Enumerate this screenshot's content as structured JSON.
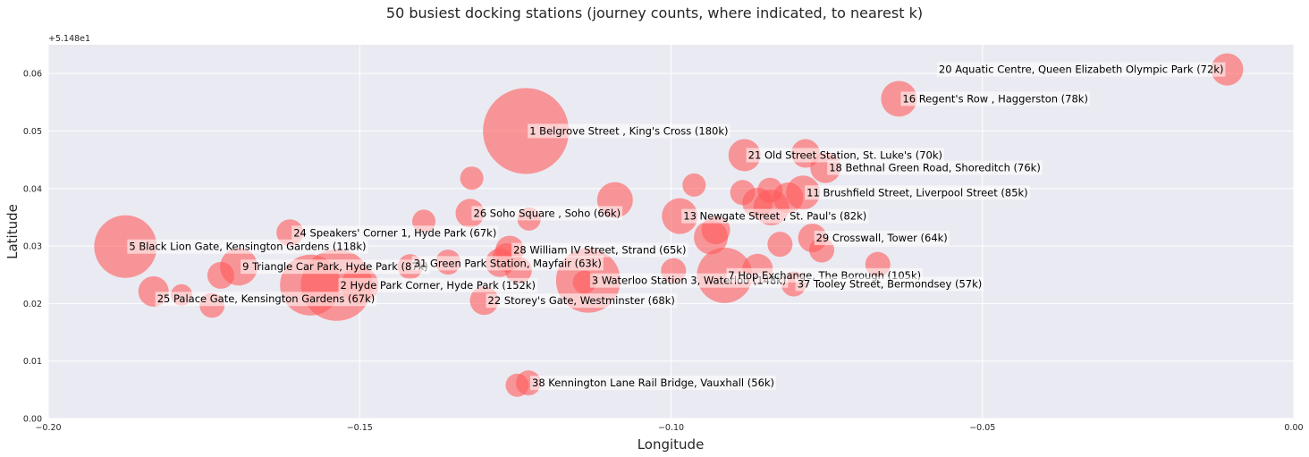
{
  "chart_data": {
    "type": "scatter",
    "title": "50 busiest docking stations (journey counts, where indicated, to nearest k)",
    "xlabel": "Longitude",
    "ylabel": "Latitude",
    "xlim": [
      -0.2,
      0.0
    ],
    "ylim": [
      0.0,
      0.065
    ],
    "y_offset_label": "+5.148e1",
    "x_ticks": [
      -0.2,
      -0.15,
      -0.1,
      -0.05,
      0.0
    ],
    "x_tick_labels": [
      "−0.20",
      "−0.15",
      "−0.10",
      "−0.05",
      "0.00"
    ],
    "y_ticks": [
      0.0,
      0.01,
      0.02,
      0.03,
      0.04,
      0.05,
      0.06
    ],
    "y_tick_labels": [
      "0.00",
      "0.01",
      "0.02",
      "0.03",
      "0.04",
      "0.05",
      "0.06"
    ],
    "grid": true,
    "colors": {
      "background": "#eaeaf2",
      "grid": "#ffffff",
      "marker": "#ff5a5a"
    },
    "points": [
      {
        "x": -0.1233,
        "y": 0.05,
        "r": 48
      },
      {
        "x": -0.1537,
        "y": 0.0232,
        "r": 40
      },
      {
        "x": -0.1579,
        "y": 0.0232,
        "r": 34
      },
      {
        "x": -0.1133,
        "y": 0.024,
        "r": 36
      },
      {
        "x": -0.1876,
        "y": 0.0299,
        "r": 35
      },
      {
        "x": -0.0914,
        "y": 0.0249,
        "r": 31
      },
      {
        "x": -0.1694,
        "y": 0.0264,
        "r": 21
      },
      {
        "x": -0.15,
        "y": 0.0232,
        "r": 21
      },
      {
        "x": -0.0936,
        "y": 0.0315,
        "r": 19
      },
      {
        "x": -0.0986,
        "y": 0.0352,
        "r": 20
      },
      {
        "x": -0.0839,
        "y": 0.0367,
        "r": 20
      },
      {
        "x": -0.0861,
        "y": 0.0375,
        "r": 17
      },
      {
        "x": -0.0788,
        "y": 0.0393,
        "r": 19
      },
      {
        "x": -0.0812,
        "y": 0.0384,
        "r": 17
      },
      {
        "x": -0.0841,
        "y": 0.0397,
        "r": 14
      },
      {
        "x": -0.0885,
        "y": 0.0393,
        "r": 14
      },
      {
        "x": -0.0634,
        "y": 0.0556,
        "r": 20
      },
      {
        "x": -0.0107,
        "y": 0.0607,
        "r": 18
      },
      {
        "x": -0.0882,
        "y": 0.0458,
        "r": 18
      },
      {
        "x": -0.0784,
        "y": 0.0461,
        "r": 16
      },
      {
        "x": -0.0752,
        "y": 0.0436,
        "r": 17
      },
      {
        "x": -0.0963,
        "y": 0.0406,
        "r": 13
      },
      {
        "x": -0.109,
        "y": 0.038,
        "r": 20
      },
      {
        "x": -0.132,
        "y": 0.0418,
        "r": 13
      },
      {
        "x": -0.1323,
        "y": 0.0357,
        "r": 16
      },
      {
        "x": -0.1228,
        "y": 0.0347,
        "r": 13
      },
      {
        "x": -0.1397,
        "y": 0.0343,
        "r": 13
      },
      {
        "x": -0.1612,
        "y": 0.0323,
        "r": 15
      },
      {
        "x": -0.1259,
        "y": 0.0293,
        "r": 16
      },
      {
        "x": -0.1264,
        "y": 0.028,
        "r": 16
      },
      {
        "x": -0.1275,
        "y": 0.0271,
        "r": 16
      },
      {
        "x": -0.1245,
        "y": 0.0258,
        "r": 15
      },
      {
        "x": -0.1358,
        "y": 0.0272,
        "r": 14
      },
      {
        "x": -0.1419,
        "y": 0.0264,
        "r": 14
      },
      {
        "x": -0.0928,
        "y": 0.0328,
        "r": 16
      },
      {
        "x": -0.0825,
        "y": 0.0303,
        "r": 14
      },
      {
        "x": -0.0773,
        "y": 0.0314,
        "r": 16
      },
      {
        "x": -0.0758,
        "y": 0.0293,
        "r": 14
      },
      {
        "x": -0.0668,
        "y": 0.0268,
        "r": 14
      },
      {
        "x": -0.0861,
        "y": 0.026,
        "r": 17
      },
      {
        "x": -0.0996,
        "y": 0.0257,
        "r": 14
      },
      {
        "x": -0.0803,
        "y": 0.0234,
        "r": 14
      },
      {
        "x": -0.13,
        "y": 0.0205,
        "r": 16
      },
      {
        "x": -0.1831,
        "y": 0.0221,
        "r": 17
      },
      {
        "x": -0.1786,
        "y": 0.0215,
        "r": 12
      },
      {
        "x": -0.1737,
        "y": 0.0197,
        "r": 14
      },
      {
        "x": -0.1723,
        "y": 0.0249,
        "r": 15
      },
      {
        "x": -0.1229,
        "y": 0.0062,
        "r": 14
      },
      {
        "x": -0.1247,
        "y": 0.0058,
        "r": 13
      },
      {
        "x": -0.1139,
        "y": 0.0237,
        "r": 13
      }
    ],
    "annotations": [
      {
        "x": -0.1233,
        "y": 0.05,
        "text": "1 Belgrove Street , King's Cross (180k)"
      },
      {
        "x": -0.1537,
        "y": 0.0232,
        "text": "2 Hyde Park Corner, Hyde Park (152k)"
      },
      {
        "x": -0.1133,
        "y": 0.024,
        "text": "3 Waterloo Station 3, Waterloo (148k)"
      },
      {
        "x": -0.1876,
        "y": 0.0299,
        "text": "5 Black Lion Gate, Kensington Gardens (118k)"
      },
      {
        "x": -0.0914,
        "y": 0.0249,
        "text": "7 Hop Exchange, The Borough (105k)"
      },
      {
        "x": -0.1694,
        "y": 0.0264,
        "text": "9 Triangle Car Park, Hyde Park (87k)"
      },
      {
        "x": -0.0788,
        "y": 0.0393,
        "text": "11 Brushfield Street, Liverpool Street (85k)"
      },
      {
        "x": -0.0986,
        "y": 0.0352,
        "text": "13 Newgate Street , St. Paul's (82k)"
      },
      {
        "x": -0.0634,
        "y": 0.0556,
        "text": "16 Regent's Row , Haggerston (78k)"
      },
      {
        "x": -0.0752,
        "y": 0.0436,
        "text": "18 Bethnal Green Road, Shoreditch (76k)"
      },
      {
        "x": -0.0107,
        "y": 0.0607,
        "text": "20 Aquatic Centre, Queen Elizabeth Olympic Park (72k)",
        "align": "end"
      },
      {
        "x": -0.0882,
        "y": 0.0458,
        "text": "21 Old Street Station, St. Luke's (70k)"
      },
      {
        "x": -0.13,
        "y": 0.0205,
        "text": "22 Storey's Gate, Westminster (68k)"
      },
      {
        "x": -0.1612,
        "y": 0.0323,
        "text": "24 Speakers' Corner 1, Hyde Park (67k)"
      },
      {
        "x": -0.1831,
        "y": 0.0208,
        "text": "25 Palace Gate, Kensington Gardens (67k)"
      },
      {
        "x": -0.1323,
        "y": 0.0357,
        "text": "26 Soho Square , Soho (66k)"
      },
      {
        "x": -0.1259,
        "y": 0.0293,
        "text": "28 William IV Street, Strand (65k)"
      },
      {
        "x": -0.0773,
        "y": 0.0314,
        "text": "29 Crosswall, Tower (64k)"
      },
      {
        "x": -0.1419,
        "y": 0.027,
        "text": "31 Green Park Station, Mayfair (63k)"
      },
      {
        "x": -0.0803,
        "y": 0.0234,
        "text": "37 Tooley Street, Bermondsey (57k)"
      },
      {
        "x": -0.1229,
        "y": 0.0062,
        "text": "38 Kennington Lane Rail Bridge, Vauxhall (56k)"
      }
    ]
  }
}
